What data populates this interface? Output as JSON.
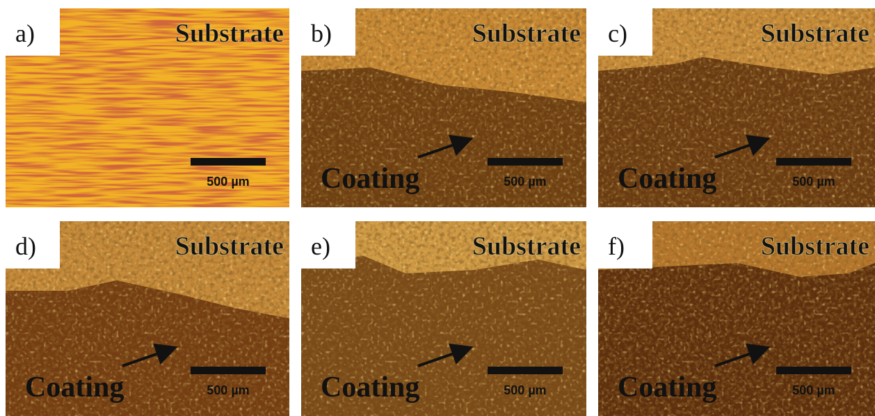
{
  "panels": [
    {
      "label": "a)",
      "substrate": "Substrate",
      "scale": "500 µm"
    },
    {
      "label": "b)",
      "substrate": "Substrate",
      "coating": "Coating",
      "scale": "500 µm"
    },
    {
      "label": "c)",
      "substrate": "Substrate",
      "coating": "Coating",
      "scale": "500 µm"
    },
    {
      "label": "d)",
      "substrate": "Substrate",
      "coating": "Coating",
      "scale": "500 µm"
    },
    {
      "label": "e)",
      "substrate": "Substrate",
      "coating": "Coating",
      "scale": "500 µm"
    },
    {
      "label": "f)",
      "substrate": "Substrate",
      "coating": "Coating",
      "scale": "500 µm"
    }
  ]
}
